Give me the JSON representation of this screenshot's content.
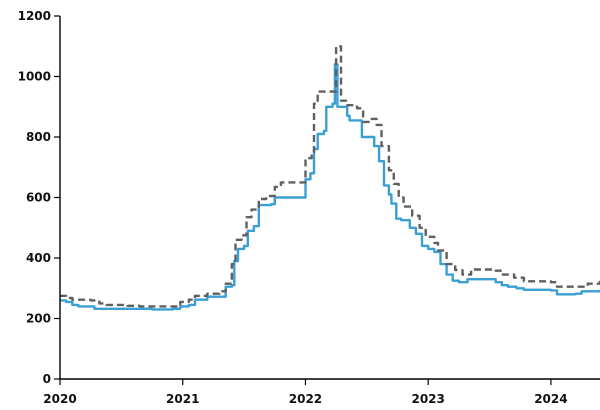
{
  "chart_data": {
    "type": "line",
    "title": "",
    "xlabel": "",
    "ylabel": "",
    "x_domain": [
      2020.0,
      2024.4
    ],
    "ylim": [
      0,
      1200
    ],
    "x_ticks": [
      {
        "value": 2020,
        "label": "2020"
      },
      {
        "value": 2021,
        "label": "2021"
      },
      {
        "value": 2022,
        "label": "2022"
      },
      {
        "value": 2023,
        "label": "2023"
      },
      {
        "value": 2024,
        "label": "2024"
      }
    ],
    "y_ticks": [
      {
        "value": 0,
        "label": "0"
      },
      {
        "value": 200,
        "label": "200"
      },
      {
        "value": 400,
        "label": "400"
      },
      {
        "value": 600,
        "label": "600"
      },
      {
        "value": 800,
        "label": "800"
      },
      {
        "value": 1000,
        "label": "1000"
      },
      {
        "value": 1200,
        "label": "1200"
      }
    ],
    "grid": false,
    "legend": "none",
    "series": [
      {
        "style": "solid",
        "color": "#3a9fd5",
        "points": [
          [
            2020.0,
            260
          ],
          [
            2020.05,
            255
          ],
          [
            2020.1,
            245
          ],
          [
            2020.15,
            240
          ],
          [
            2020.25,
            240
          ],
          [
            2020.28,
            232
          ],
          [
            2020.5,
            232
          ],
          [
            2020.75,
            230
          ],
          [
            2020.92,
            232
          ],
          [
            2020.98,
            240
          ],
          [
            2021.05,
            245
          ],
          [
            2021.1,
            262
          ],
          [
            2021.18,
            262
          ],
          [
            2021.2,
            272
          ],
          [
            2021.32,
            272
          ],
          [
            2021.35,
            305
          ],
          [
            2021.4,
            310
          ],
          [
            2021.42,
            390
          ],
          [
            2021.45,
            430
          ],
          [
            2021.5,
            440
          ],
          [
            2021.53,
            490
          ],
          [
            2021.58,
            505
          ],
          [
            2021.62,
            575
          ],
          [
            2021.72,
            578
          ],
          [
            2021.75,
            600
          ],
          [
            2021.85,
            600
          ],
          [
            2021.97,
            600
          ],
          [
            2022.0,
            660
          ],
          [
            2022.04,
            680
          ],
          [
            2022.07,
            760
          ],
          [
            2022.1,
            810
          ],
          [
            2022.15,
            820
          ],
          [
            2022.17,
            900
          ],
          [
            2022.22,
            910
          ],
          [
            2022.24,
            1040
          ],
          [
            2022.26,
            900
          ],
          [
            2022.3,
            900
          ],
          [
            2022.34,
            870
          ],
          [
            2022.36,
            855
          ],
          [
            2022.43,
            855
          ],
          [
            2022.46,
            800
          ],
          [
            2022.53,
            800
          ],
          [
            2022.56,
            770
          ],
          [
            2022.6,
            720
          ],
          [
            2022.64,
            640
          ],
          [
            2022.68,
            610
          ],
          [
            2022.7,
            580
          ],
          [
            2022.74,
            530
          ],
          [
            2022.78,
            525
          ],
          [
            2022.85,
            500
          ],
          [
            2022.9,
            480
          ],
          [
            2022.95,
            440
          ],
          [
            2023.0,
            430
          ],
          [
            2023.05,
            420
          ],
          [
            2023.1,
            380
          ],
          [
            2023.15,
            345
          ],
          [
            2023.2,
            325
          ],
          [
            2023.25,
            320
          ],
          [
            2023.32,
            330
          ],
          [
            2023.5,
            330
          ],
          [
            2023.55,
            320
          ],
          [
            2023.6,
            310
          ],
          [
            2023.65,
            305
          ],
          [
            2023.72,
            300
          ],
          [
            2023.78,
            295
          ],
          [
            2024.0,
            293
          ],
          [
            2024.05,
            280
          ],
          [
            2024.2,
            282
          ],
          [
            2024.25,
            290
          ],
          [
            2024.4,
            295
          ]
        ]
      },
      {
        "style": "dashed",
        "color": "#606060",
        "points": [
          [
            2020.0,
            275
          ],
          [
            2020.05,
            268
          ],
          [
            2020.1,
            262
          ],
          [
            2020.25,
            260
          ],
          [
            2020.32,
            250
          ],
          [
            2020.38,
            245
          ],
          [
            2020.55,
            242
          ],
          [
            2020.65,
            240
          ],
          [
            2020.95,
            240
          ],
          [
            2020.98,
            255
          ],
          [
            2021.05,
            262
          ],
          [
            2021.1,
            275
          ],
          [
            2021.2,
            282
          ],
          [
            2021.3,
            290
          ],
          [
            2021.35,
            315
          ],
          [
            2021.4,
            380
          ],
          [
            2021.43,
            460
          ],
          [
            2021.48,
            475
          ],
          [
            2021.52,
            535
          ],
          [
            2021.56,
            560
          ],
          [
            2021.62,
            595
          ],
          [
            2021.68,
            605
          ],
          [
            2021.75,
            635
          ],
          [
            2021.8,
            650
          ],
          [
            2021.95,
            650
          ],
          [
            2022.0,
            730
          ],
          [
            2022.05,
            750
          ],
          [
            2022.07,
            910
          ],
          [
            2022.1,
            950
          ],
          [
            2022.22,
            950
          ],
          [
            2022.25,
            1100
          ],
          [
            2022.29,
            920
          ],
          [
            2022.33,
            905
          ],
          [
            2022.42,
            895
          ],
          [
            2022.47,
            850
          ],
          [
            2022.53,
            860
          ],
          [
            2022.58,
            840
          ],
          [
            2022.62,
            770
          ],
          [
            2022.68,
            690
          ],
          [
            2022.72,
            645
          ],
          [
            2022.76,
            600
          ],
          [
            2022.8,
            570
          ],
          [
            2022.87,
            540
          ],
          [
            2022.93,
            500
          ],
          [
            2022.98,
            470
          ],
          [
            2023.05,
            450
          ],
          [
            2023.08,
            425
          ],
          [
            2023.15,
            380
          ],
          [
            2023.22,
            360
          ],
          [
            2023.28,
            345
          ],
          [
            2023.35,
            362
          ],
          [
            2023.55,
            358
          ],
          [
            2023.6,
            345
          ],
          [
            2023.7,
            335
          ],
          [
            2023.78,
            323
          ],
          [
            2024.0,
            320
          ],
          [
            2024.05,
            305
          ],
          [
            2024.22,
            305
          ],
          [
            2024.3,
            315
          ],
          [
            2024.4,
            325
          ]
        ]
      }
    ]
  }
}
